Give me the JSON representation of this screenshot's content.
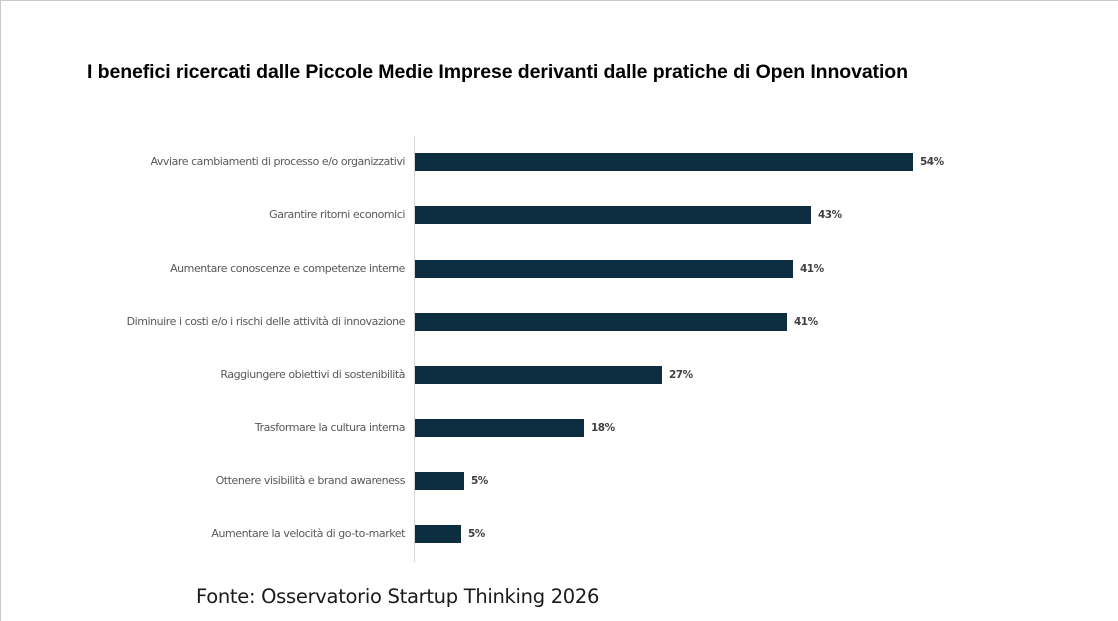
{
  "chart_data": {
    "type": "bar",
    "orientation": "horizontal",
    "title": "I benefici ricercati dalle Piccole Medie Imprese derivanti dalle pratiche di Open Innovation",
    "xlabel": "",
    "ylabel": "",
    "categories": [
      "Avviare cambiamenti di processo e/o organizzativi",
      "Garantire ritorni economici",
      "Aumentare conoscenze e competenze interne",
      "Diminuire i costi e/o i rischi delle attività di innovazione",
      "Raggiungere obiettivi di sostenibilità",
      "Trasformare la cultura interna",
      "Ottenere visibilità e brand awareness",
      "Aumentare la velocità di go-to-market"
    ],
    "values": [
      54,
      43,
      41,
      41,
      27,
      18,
      5,
      5
    ],
    "value_labels": [
      "54%",
      "43%",
      "41%",
      "41%",
      "27%",
      "18%",
      "5%",
      "5%"
    ],
    "unit": "%",
    "grid": false,
    "legend": null,
    "bar_color": "#0d2e41",
    "source": "Fonte: Osservatorio Startup Thinking 2026"
  },
  "bars": [
    {
      "label": "Avviare cambiamenti di processo e/o organizzativi",
      "value_label": "54%",
      "px": 498
    },
    {
      "label": "Garantire ritorni economici",
      "value_label": "43%",
      "px": 396
    },
    {
      "label": "Aumentare conoscenze e competenze interne",
      "value_label": "41%",
      "px": 378
    },
    {
      "label": "Diminuire i costi e/o i rischi delle attività di innovazione",
      "value_label": "41%",
      "px": 372
    },
    {
      "label": "Raggiungere obiettivi di sostenibilità",
      "value_label": "27%",
      "px": 247
    },
    {
      "label": "Trasformare la cultura interna",
      "value_label": "18%",
      "px": 169
    },
    {
      "label": "Ottenere visibilità e brand awareness",
      "value_label": "5%",
      "px": 49
    },
    {
      "label": "Aumentare la velocità di go-to-market",
      "value_label": "5%",
      "px": 46
    }
  ],
  "title": "I benefici ricercati dalle Piccole Medie Imprese derivanti dalle pratiche di Open Innovation",
  "source": "Fonte: Osservatorio Startup Thinking 2026"
}
